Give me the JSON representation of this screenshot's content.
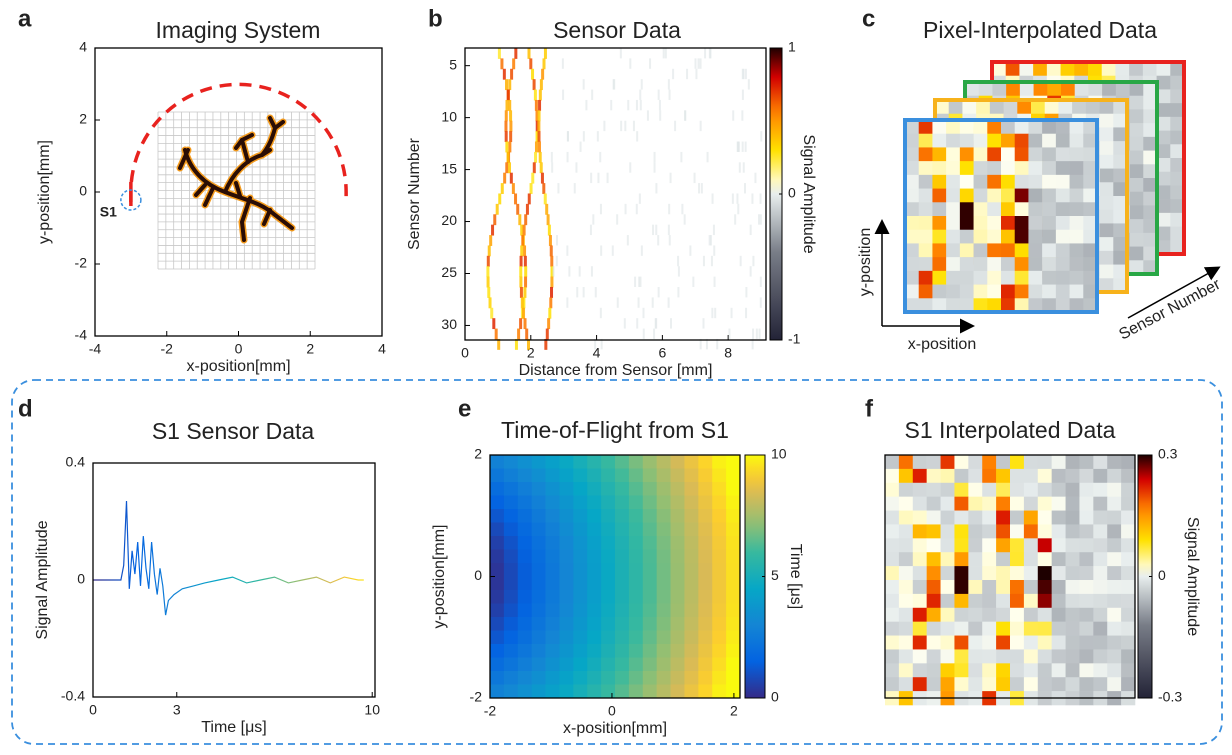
{
  "panels": [
    {
      "letter": "a",
      "title": "Imaging System",
      "xlabel": "x-position[mm]",
      "ylabel": "y-position[mm]",
      "xlim": [
        -4,
        4
      ],
      "ylim": [
        -4,
        4
      ],
      "xticks": [
        -4,
        -2,
        0,
        2,
        4
      ],
      "yticks": [
        -4,
        -2,
        0,
        2,
        4
      ],
      "annotation": "S1"
    },
    {
      "letter": "b",
      "title": "Sensor Data",
      "xlabel": "Distance from Sensor [mm]",
      "ylabel": "Sensor Number",
      "xlim": [
        0,
        9.15
      ],
      "ylim": [
        31.4,
        3.3
      ],
      "xticks": [
        0,
        2,
        4,
        6,
        8
      ],
      "yticks": [
        5,
        10,
        15,
        20,
        25,
        30
      ],
      "colorbar_label": "Signal Amplitude",
      "clim": [
        -1,
        1
      ],
      "cticks": [
        -1,
        0,
        1
      ]
    },
    {
      "letter": "c",
      "title": "Pixel-Interpolated Data",
      "axis_labels": [
        "x-position",
        "y-position",
        "Sensor Number"
      ]
    },
    {
      "letter": "d",
      "title": "S1 Sensor Data",
      "xlabel": "Time [μs]",
      "ylabel": "Signal Amplitude",
      "xlim": [
        0,
        10.1
      ],
      "ylim": [
        -0.4,
        0.4
      ],
      "xticks": [
        0,
        3,
        10
      ],
      "yticks": [
        -0.4,
        0,
        0.4
      ],
      "x": [
        0,
        0.5,
        1.0,
        1.1,
        1.2,
        1.3,
        1.4,
        1.5,
        1.6,
        1.7,
        1.8,
        1.9,
        2.0,
        2.1,
        2.2,
        2.3,
        2.4,
        2.5,
        2.6,
        2.7,
        2.9,
        3.2,
        3.6,
        4.0,
        4.5,
        5.0,
        5.5,
        6.0,
        6.5,
        7.0,
        7.5,
        8.0,
        8.5,
        9.0,
        9.5,
        9.7
      ],
      "values": [
        0,
        0,
        0,
        0.05,
        0.27,
        -0.03,
        0.1,
        0.02,
        0.13,
        -0.02,
        0.15,
        0.04,
        -0.03,
        0.13,
        0.02,
        -0.05,
        0.04,
        -0.02,
        -0.12,
        -0.07,
        -0.05,
        -0.03,
        -0.02,
        -0.01,
        0,
        0.01,
        -0.01,
        0,
        0.01,
        -0.01,
        0,
        0.01,
        -0.01,
        0.01,
        0,
        0
      ]
    },
    {
      "letter": "e",
      "title": "Time-of-Flight from S1",
      "xlabel": "x-position[mm]",
      "ylabel": "y-position[mm]",
      "xlim": [
        -2,
        2.1
      ],
      "ylim": [
        -2,
        2
      ],
      "xticks": [
        -2,
        0,
        2
      ],
      "yticks": [
        -2,
        0,
        2
      ],
      "colorbar_label": "Time [μs]",
      "clim": [
        0,
        10
      ],
      "cticks": [
        0,
        5,
        10
      ]
    },
    {
      "letter": "f",
      "title": "S1 Interpolated Data",
      "colorbar_label": "Signal Amplitude",
      "clim": [
        -0.3,
        0.3
      ],
      "cticks": [
        -0.3,
        0,
        0.3
      ]
    }
  ]
}
